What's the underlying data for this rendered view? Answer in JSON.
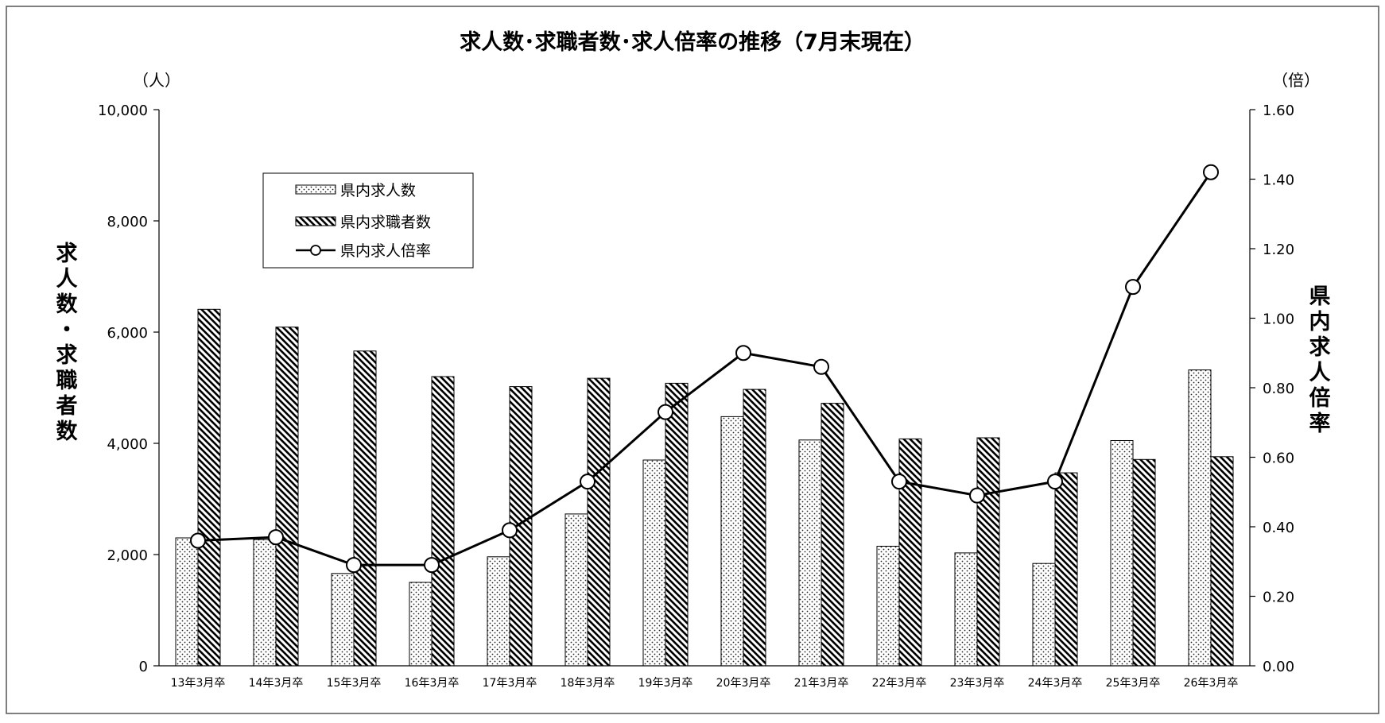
{
  "chart_data": {
    "type": "bar",
    "title": "求人数･求職者数･求人倍率の推移（7月末現在）",
    "left_axis": {
      "unit": "（人）",
      "label": "求人数・求職者数",
      "label_chars": [
        "求",
        "人",
        "数",
        "・",
        "求",
        "職",
        "者",
        "数"
      ],
      "ylim": [
        0,
        10000
      ],
      "ticks": [
        "0",
        "2,000",
        "4,000",
        "6,000",
        "8,000",
        "10,000"
      ]
    },
    "right_axis": {
      "unit": "（倍）",
      "label": "県内求人倍率",
      "label_chars": [
        "県",
        "内",
        "求",
        "人",
        "倍",
        "率"
      ],
      "ylim": [
        0,
        1.6
      ],
      "ticks": [
        "0.00",
        "0.20",
        "0.40",
        "0.60",
        "0.80",
        "1.00",
        "1.20",
        "1.40",
        "1.60"
      ]
    },
    "categories": [
      "13年3月卒",
      "14年3月卒",
      "15年3月卒",
      "16年3月卒",
      "17年3月卒",
      "18年3月卒",
      "19年3月卒",
      "20年3月卒",
      "21年3月卒",
      "22年3月卒",
      "23年3月卒",
      "24年3月卒",
      "25年3月卒",
      "26年3月卒"
    ],
    "series": [
      {
        "name": "県内求人数",
        "kind": "bar",
        "pattern": "dots",
        "axis": "left",
        "values": [
          2300,
          2270,
          1660,
          1500,
          1960,
          2730,
          3700,
          4480,
          4060,
          2150,
          2030,
          1840,
          4050,
          5320
        ]
      },
      {
        "name": "県内求職者数",
        "kind": "bar",
        "pattern": "hatch",
        "axis": "left",
        "values": [
          6410,
          6090,
          5660,
          5200,
          5020,
          5170,
          5080,
          4970,
          4720,
          4080,
          4100,
          3470,
          3710,
          3760
        ]
      },
      {
        "name": "県内求人倍率",
        "kind": "line",
        "marker": "circle",
        "axis": "right",
        "values": [
          0.36,
          0.37,
          0.29,
          0.29,
          0.39,
          0.53,
          0.73,
          0.9,
          0.86,
          0.53,
          0.49,
          0.53,
          1.09,
          1.42
        ]
      }
    ],
    "legend": {
      "position": "top-left"
    },
    "grid": false
  }
}
